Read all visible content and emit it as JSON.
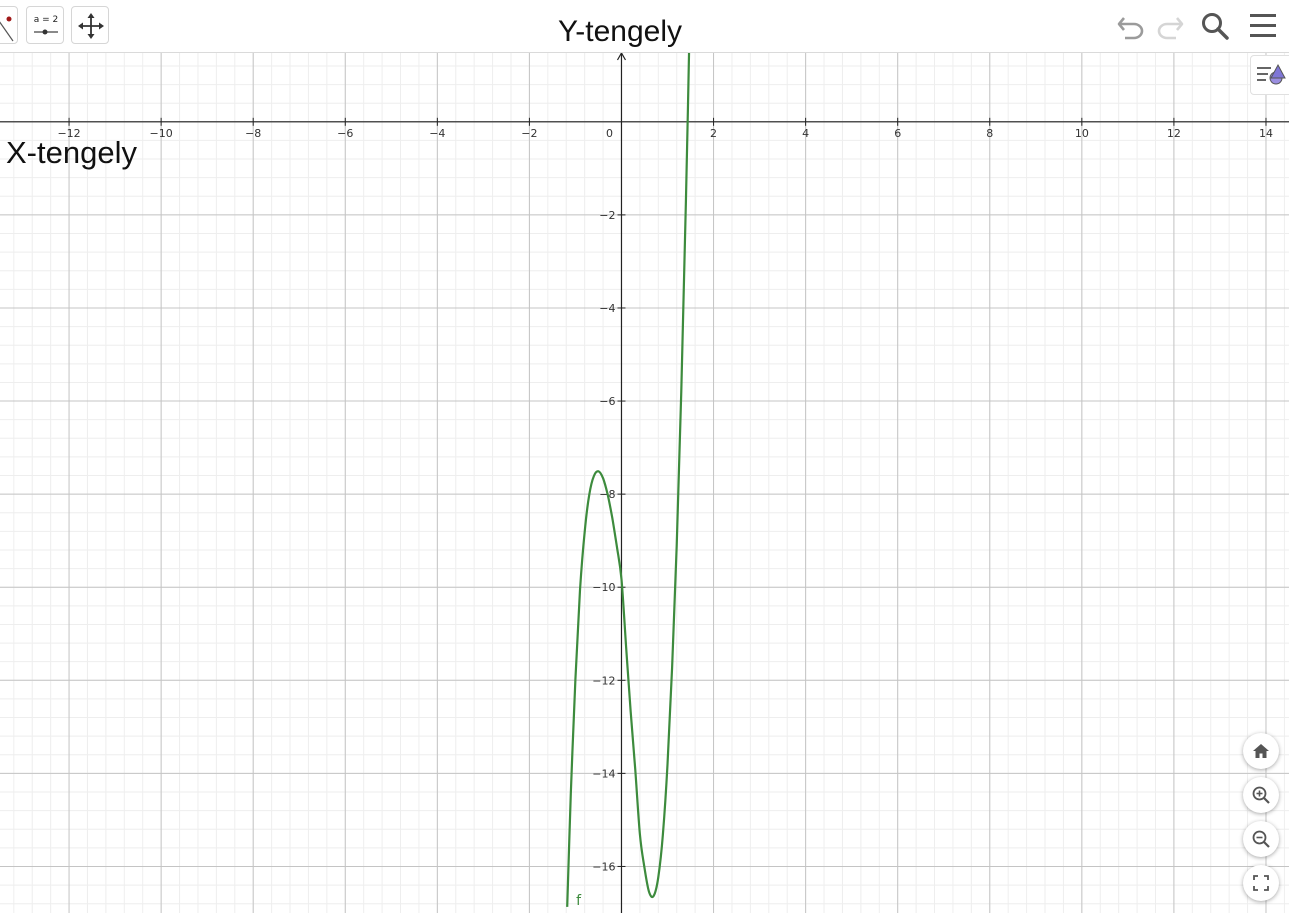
{
  "toolbar": {
    "slider_tool_label": "a = 2",
    "tools": [
      "point-line-tool",
      "slider-tool",
      "move-graphics-view-tool"
    ],
    "actions": [
      "undo-icon",
      "redo-icon",
      "search-icon",
      "menu-icon"
    ]
  },
  "graphics_view": {
    "y_axis_title": "Y-tengely",
    "x_axis_title": "X-tengely",
    "curve_label": "f",
    "curve_color": "#3d8b3d",
    "grid": true,
    "style_bar_icon": "style-bar-icon",
    "zoom_controls": [
      "home-icon",
      "zoom-in-icon",
      "zoom-out-icon",
      "fullscreen-icon"
    ]
  },
  "chart_data": {
    "type": "line",
    "xlim": [
      -13.5,
      14.5
    ],
    "ylim": [
      -17,
      1.5
    ],
    "x_ticks": [
      -12,
      -10,
      -8,
      -6,
      -4,
      -2,
      0,
      2,
      4,
      6,
      8,
      10,
      12,
      14
    ],
    "y_ticks": [
      -16,
      -14,
      -12,
      -10,
      -8,
      -6,
      -4,
      -2
    ],
    "series": [
      {
        "name": "f",
        "color": "#3d8b3d",
        "x": [
          -1.18,
          -1.1,
          -1.0,
          -0.9,
          -0.8,
          -0.7,
          -0.6,
          -0.5,
          -0.4,
          -0.3,
          -0.2,
          -0.1,
          0.0,
          0.1,
          0.2,
          0.3,
          0.4,
          0.5,
          0.6,
          0.7,
          0.8,
          0.9,
          1.0,
          1.1,
          1.2,
          1.3,
          1.4,
          1.5
        ],
        "y": [
          -16.87,
          -14.44,
          -11.98,
          -10.06,
          -8.81,
          -8.01,
          -7.61,
          -7.51,
          -7.66,
          -8.01,
          -8.51,
          -9.13,
          -9.83,
          -11.28,
          -12.68,
          -13.93,
          -15.31,
          -16.03,
          -16.55,
          -16.63,
          -16.23,
          -15.31,
          -13.81,
          -11.73,
          -9.11,
          -5.78,
          -1.72,
          3.06
        ]
      }
    ]
  }
}
